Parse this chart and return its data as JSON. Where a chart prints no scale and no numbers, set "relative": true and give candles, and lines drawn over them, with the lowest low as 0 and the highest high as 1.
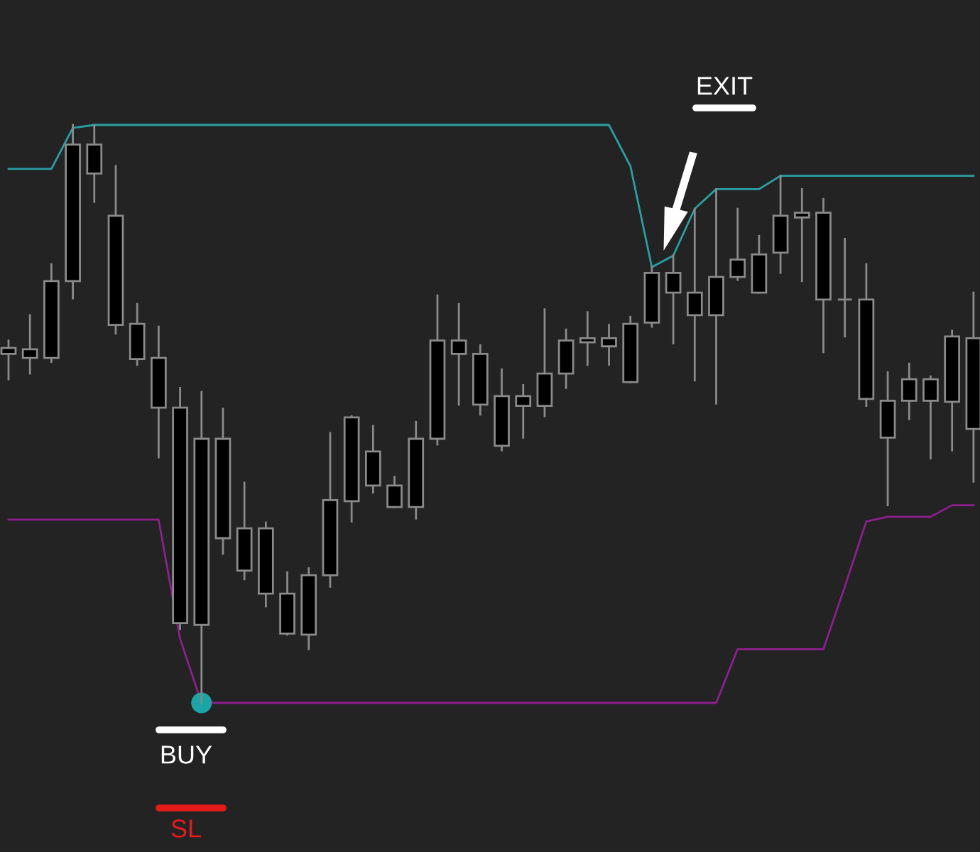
{
  "chart_data": {
    "type": "candlestick",
    "relative": true,
    "categories": [
      null,
      null,
      null,
      null,
      null,
      null,
      null,
      null,
      null,
      null,
      null,
      null,
      null,
      null,
      null,
      null,
      null,
      null,
      null,
      null,
      null,
      null,
      null,
      null,
      null,
      null,
      null,
      null,
      null,
      null,
      null,
      null,
      null,
      null,
      null,
      null,
      null,
      null,
      null,
      null,
      null,
      null,
      null,
      null,
      null,
      null
    ],
    "ohlc": [
      [
        0.614,
        0.627,
        0.56,
        0.604
      ],
      [
        0.612,
        0.671,
        0.57,
        0.597
      ],
      [
        0.73,
        0.759,
        0.59,
        0.597
      ],
      [
        0.966,
        1.0,
        0.7,
        0.73
      ],
      [
        0.966,
        1.0,
        0.867,
        0.916
      ],
      [
        0.843,
        0.929,
        0.639,
        0.654
      ],
      [
        0.656,
        0.69,
        0.585,
        0.595
      ],
      [
        0.597,
        0.651,
        0.425,
        0.511
      ],
      [
        0.511,
        0.545,
        0.128,
        0.138
      ],
      [
        0.457,
        0.538,
        0,
        0.135
      ],
      [
        0.457,
        0.509,
        0.258,
        0.285
      ],
      [
        0.302,
        0.381,
        0.214,
        0.229
      ],
      [
        0.302,
        0.312,
        0.167,
        0.189
      ],
      [
        0.189,
        0.226,
        0.118,
        0.12
      ],
      [
        0.221,
        0.233,
        0.093,
        0.118
      ],
      [
        0.351,
        0.467,
        0.201,
        0.221
      ],
      [
        0.494,
        0.496,
        0.314,
        0.349
      ],
      [
        0.435,
        0.479,
        0.364,
        0.376
      ],
      [
        0.376,
        0.391,
        0.339,
        0.339
      ],
      [
        0.457,
        0.486,
        0.319,
        0.339
      ],
      [
        0.627,
        0.705,
        0.447,
        0.457
      ],
      [
        0.627,
        0.69,
        0.516,
        0.604
      ],
      [
        0.604,
        0.619,
        0.499,
        0.516
      ],
      [
        0.531,
        0.577,
        0.437,
        0.445
      ],
      [
        0.531,
        0.55,
        0.459,
        0.514
      ],
      [
        0.57,
        0.681,
        0.496,
        0.514
      ],
      [
        0.627,
        0.646,
        0.545,
        0.57
      ],
      [
        0.631,
        0.676,
        0.585,
        0.624
      ],
      [
        0.631,
        0.654,
        0.585,
        0.617
      ],
      [
        0.656,
        0.668,
        0.555,
        0.555
      ],
      [
        0.744,
        0.754,
        0.651,
        0.658
      ],
      [
        0.744,
        0.774,
        0.622,
        0.71
      ],
      [
        0.71,
        0.855,
        0.558,
        0.671
      ],
      [
        0.737,
        0.889,
        0.518,
        0.671
      ],
      [
        0.767,
        0.855,
        0.732,
        0.737
      ],
      [
        0.776,
        0.808,
        0.71,
        0.71
      ],
      [
        0.843,
        0.912,
        0.744,
        0.779
      ],
      [
        0.848,
        0.889,
        0.73,
        0.84
      ],
      [
        0.848,
        0.872,
        0.607,
        0.698
      ],
      [
        0.698,
        0.803,
        0.634,
        0.698
      ],
      [
        0.698,
        0.759,
        0.514,
        0.526
      ],
      [
        0.523,
        0.572,
        0.342,
        0.459
      ],
      [
        0.56,
        0.587,
        0.491,
        0.523
      ],
      [
        0.56,
        0.565,
        0.423,
        0.523
      ],
      [
        0.634,
        0.644,
        0.437,
        0.521
      ],
      [
        0.631,
        0.71,
        0.383,
        0.474
      ]
    ],
    "series": [
      {
        "type": "line",
        "color": "#2a9fa3",
        "values": [
          0.924,
          0.924,
          0.924,
          0.995,
          1,
          1,
          1,
          1,
          1,
          1,
          1,
          1,
          1,
          1,
          1,
          1,
          1,
          1,
          1,
          1,
          1,
          1,
          1,
          1,
          1,
          1,
          1,
          1,
          1,
          0.929,
          0.754,
          0.774,
          0.855,
          0.889,
          0.889,
          0.889,
          0.912,
          0.912,
          0.912,
          0.912,
          0.912,
          0.912,
          0.912,
          0.912,
          0.912,
          0.912
        ]
      },
      {
        "type": "line",
        "color": "#8e1f8e",
        "values": [
          0.317,
          0.317,
          0.317,
          0.317,
          0.317,
          0.317,
          0.317,
          0.317,
          0.111,
          0,
          0,
          0,
          0,
          0,
          0,
          0,
          0,
          0,
          0,
          0,
          0,
          0,
          0,
          0,
          0,
          0,
          0,
          0,
          0,
          0,
          0,
          0,
          0,
          0,
          0.093,
          0.093,
          0.093,
          0.093,
          0.093,
          0.201,
          0.314,
          0.322,
          0.322,
          0.322,
          0.342,
          0.342
        ]
      },
      {
        "type": "scatter",
        "color": "#1aa6a6",
        "marker": "circle",
        "values": [
          null,
          null,
          null,
          null,
          null,
          null,
          null,
          null,
          null,
          0,
          null,
          null,
          null,
          null,
          null,
          null,
          null,
          null,
          null,
          null,
          null,
          null,
          null,
          null,
          null,
          null,
          null,
          null,
          null,
          null,
          null,
          null,
          null,
          null,
          null,
          null,
          null,
          null,
          null,
          null,
          null,
          null,
          null,
          null,
          null,
          null
        ]
      }
    ],
    "annotations": [
      "EXIT",
      "BUY",
      "SL"
    ]
  }
}
